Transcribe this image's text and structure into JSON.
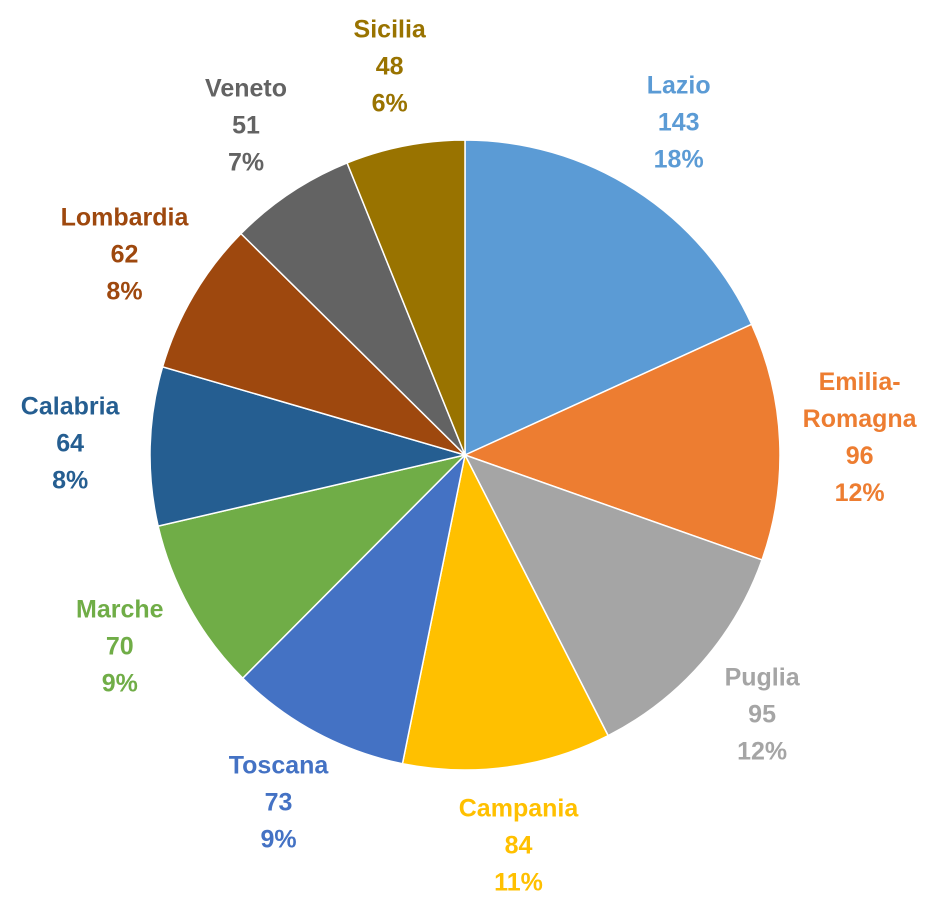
{
  "chart_data": {
    "type": "pie",
    "categories": [
      "Lazio",
      "Emilia-Romagna",
      "Puglia",
      "Campania",
      "Toscana",
      "Marche",
      "Calabria",
      "Lombardia",
      "Veneto",
      "Sicilia"
    ],
    "values": [
      143,
      96,
      95,
      84,
      73,
      70,
      64,
      62,
      51,
      48
    ],
    "percent_labels": [
      "18%",
      "12%",
      "12%",
      "11%",
      "9%",
      "9%",
      "8%",
      "8%",
      "7%",
      "6%"
    ],
    "colors": [
      "#5b9bd5",
      "#ed7d31",
      "#a5a5a5",
      "#ffc000",
      "#4472c4",
      "#70ad47",
      "#255e91",
      "#9e480e",
      "#636363",
      "#997300"
    ]
  }
}
